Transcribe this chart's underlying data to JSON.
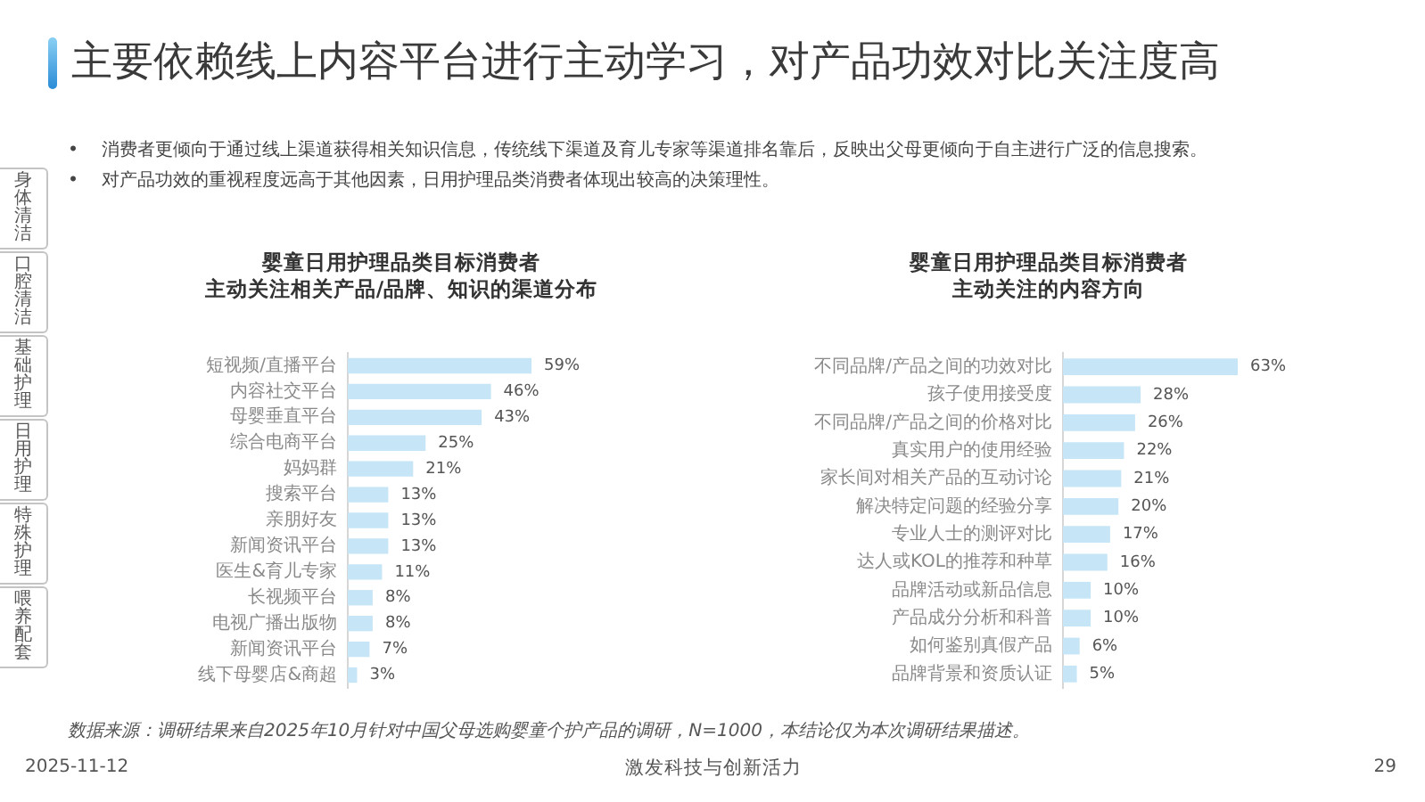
{
  "chart_data": [
    {
      "type": "other",
      "title": "主要依赖线上内容平台进行主动学习，对产品功效对比关注度高",
      "annotations": [
        "•    消费者更倾向于通过线上渠道获得相关知识信息，传统线下渠道及育儿专家等渠道排名靠后，反映出父母更倾向于自主进行广泛的信息搜索。",
        "•    对产品功效的重视程度远高于其他因素，日用护理品类消费者体现出较高的决策理性。"
      ]
    },
    {
      "type": "other",
      "annotations": [
        "身体清洁",
        "口腔清洁",
        "基础护理",
        "日用护理",
        "特殊护理",
        "喂养配套"
      ]
    },
    {
      "type": "bar",
      "orientation": "horizontal",
      "title": "婴童日用护理品类目标消费者",
      "subtitle": "主动关注相关产品/品牌、知识的渠道分布",
      "categories": [
        "短视频/直播平台",
        "内容社交平台",
        "母婴垂直平台",
        "综合电商平台",
        "妈妈群",
        "搜索平台",
        "亲朋好友",
        "新闻资讯平台",
        "医生&育儿专家",
        "长视频平台",
        "电视广播出版物",
        "新闻资讯平台",
        "线下母婴店&商超"
      ],
      "values": [
        59,
        46,
        43,
        25,
        21,
        13,
        13,
        13,
        11,
        8,
        8,
        7,
        3
      ],
      "value_labels": [
        "59%",
        "46%",
        "43%",
        "25%",
        "21%",
        "13%",
        "13%",
        "13%",
        "11%",
        "8%",
        "8%",
        "7%",
        "3%"
      ],
      "color": "#c6e5f7",
      "tick_labels": "y"
    },
    {
      "type": "bar",
      "orientation": "horizontal",
      "title": "婴童日用护理品类目标消费者",
      "subtitle": "主动关注的内容方向",
      "categories": [
        "不同品牌/产品之间的功效对比",
        "孩子使用接受度",
        "不同品牌/产品之间的价格对比",
        "真实用户的使用经验",
        "家长间对相关产品的互动讨论",
        "解决特定问题的经验分享",
        "专业人士的测评对比",
        "达人或KOL的推荐和种草",
        "品牌活动或新品信息",
        "产品成分分析和科普",
        "如何鉴别真假产品",
        "品牌背景和资质认证"
      ],
      "values": [
        63,
        28,
        26,
        22,
        21,
        20,
        17,
        16,
        10,
        10,
        6,
        5
      ],
      "value_labels": [
        "63%",
        "28%",
        "26%",
        "22%",
        "21%",
        "20%",
        "17%",
        "16%",
        "10%",
        "10%",
        "6%",
        "5%"
      ],
      "color": "#c6e5f7",
      "tick_labels": "y"
    },
    {
      "type": "other",
      "annotations": [
        "数据来源：调研结果来自2025年10月针对中国父母选购婴童个护产品的调研，N=1000，本结论仅为本次调研结果描述。",
        "2025-11-12",
        "激发科技与创新活力",
        "29"
      ]
    }
  ]
}
